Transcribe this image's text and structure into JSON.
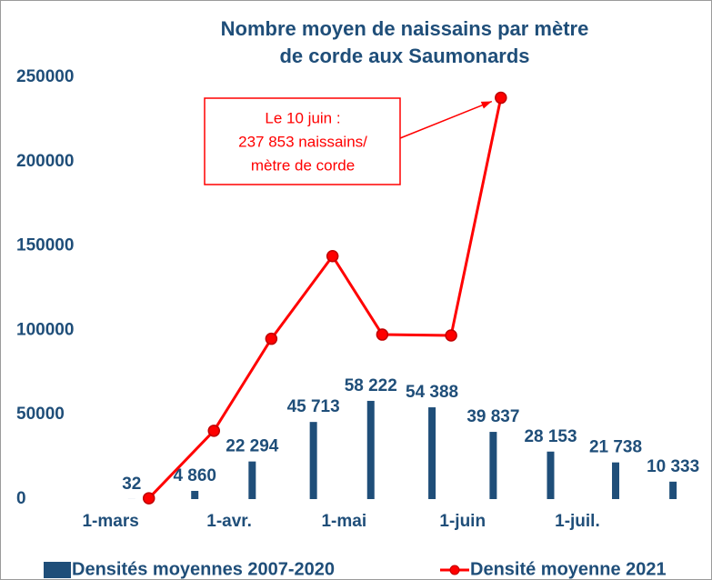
{
  "chart_data": {
    "type": "bar_line",
    "title": [
      "Nombre moyen de naissains par mètre",
      "de corde aux Saumonards"
    ],
    "ylim": [
      0,
      250000
    ],
    "yticks": [
      0,
      50000,
      100000,
      150000,
      200000,
      250000
    ],
    "xlim": [
      -8,
      156
    ],
    "xticks": [
      {
        "value": 0,
        "label": "1-mars"
      },
      {
        "value": 31,
        "label": "1-avr."
      },
      {
        "value": 61,
        "label": "1-mai"
      },
      {
        "value": 92,
        "label": "1-juin"
      },
      {
        "value": 122,
        "label": "1-juil."
      }
    ],
    "series": [
      {
        "name": "Densités moyennes 2007-2020",
        "type": "bar",
        "color": "#1f4e79",
        "x": [
          5.5,
          22,
          37,
          53,
          68,
          84,
          100,
          115,
          132,
          147
        ],
        "values": [
          32,
          4860,
          22294,
          45713,
          58222,
          54388,
          39837,
          28153,
          21738,
          10333
        ],
        "value_labels": [
          "32",
          "4 860",
          "22 294",
          "45 713",
          "58 222",
          "54 388",
          "39 837",
          "28 153",
          "21 738",
          "10 333"
        ]
      },
      {
        "name": "Densité moyenne 2021",
        "type": "line",
        "color": "#ff0000",
        "x": [
          10,
          27,
          42,
          58,
          71,
          89,
          102
        ],
        "values": [
          500,
          40500,
          95000,
          144000,
          97500,
          97000,
          237853
        ]
      }
    ],
    "annotation": [
      "Le 10 juin :",
      "237 853 naissains/",
      "mètre de corde"
    ]
  }
}
